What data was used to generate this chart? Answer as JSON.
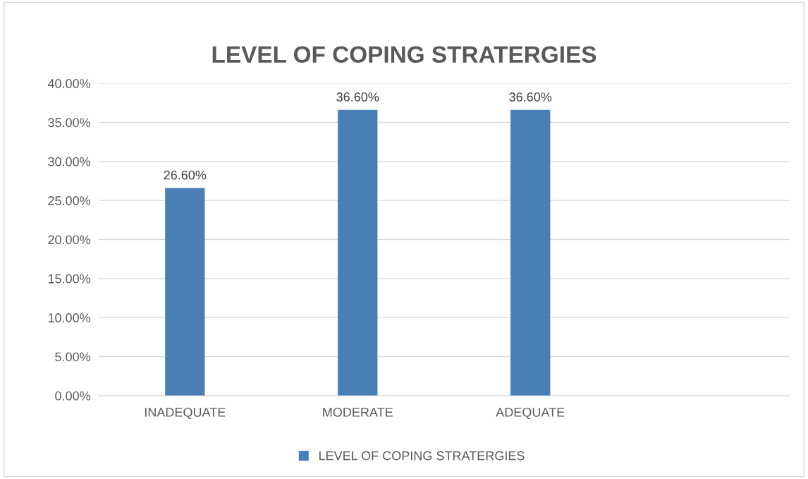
{
  "chart_data": {
    "type": "bar",
    "title": "LEVEL OF COPING STRATERGIES",
    "categories": [
      "INADEQUATE",
      "MODERATE",
      "ADEQUATE",
      null
    ],
    "series": [
      {
        "name": "LEVEL OF COPING STRATERGIES",
        "color": "#4a7fb5",
        "values": [
          26.6,
          36.6,
          36.6,
          null
        ]
      }
    ],
    "value_labels": [
      "26.60%",
      "36.60%",
      "36.60%",
      null
    ],
    "ylim": [
      0,
      40
    ],
    "yticks": [
      {
        "value": 0,
        "label": "0.00%"
      },
      {
        "value": 5,
        "label": "5.00%"
      },
      {
        "value": 10,
        "label": "10.00%"
      },
      {
        "value": 15,
        "label": "15.00%"
      },
      {
        "value": 20,
        "label": "20.00%"
      },
      {
        "value": 25,
        "label": "25.00%"
      },
      {
        "value": 30,
        "label": "30.00%"
      },
      {
        "value": 35,
        "label": "35.00%"
      },
      {
        "value": 40,
        "label": "40.00%"
      }
    ],
    "grid": "y",
    "legend": "bottom"
  }
}
